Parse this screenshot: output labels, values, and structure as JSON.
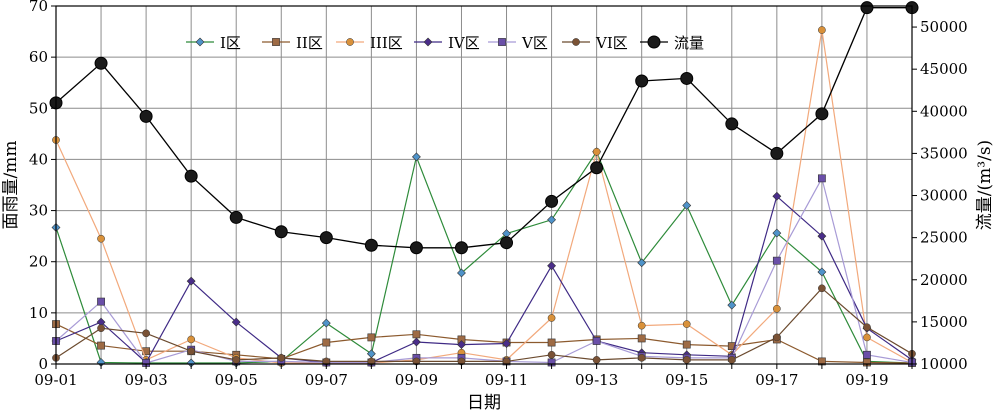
{
  "chart_data": {
    "type": "line",
    "xlabel": "日期",
    "ylabel_left": "面雨量/mm",
    "ylabel_right": "流量/(m³/s)",
    "x": [
      "09-01",
      "09-02",
      "09-03",
      "09-04",
      "09-05",
      "09-06",
      "09-07",
      "09-08",
      "09-09",
      "09-10",
      "09-11",
      "09-12",
      "09-13",
      "09-14",
      "09-15",
      "09-16",
      "09-17",
      "09-18",
      "09-19",
      "09-20"
    ],
    "x_tick_labels": [
      "09-01",
      "09-03",
      "09-05",
      "09-07",
      "09-09",
      "09-11",
      "09-13",
      "09-15",
      "09-17",
      "09-19"
    ],
    "ylim_left": [
      0,
      70
    ],
    "yticks_left": [
      "0",
      "10",
      "20",
      "30",
      "40",
      "50",
      "60",
      "70"
    ],
    "ylim_right": [
      10000,
      52500
    ],
    "yticks_right": [
      "10000",
      "15000",
      "20000",
      "25000",
      "30000",
      "35000",
      "40000",
      "45000",
      "50000"
    ],
    "grid": true,
    "legend_position": "top",
    "series": [
      {
        "name": "I区",
        "axis": "left",
        "color": "#2e8b3a",
        "marker": "diamond",
        "marker_color": "#4f93c9",
        "values": [
          26.7,
          0.3,
          0.2,
          0.2,
          0.2,
          0.5,
          8.0,
          2.0,
          40.5,
          17.8,
          25.5,
          28.2,
          41.5,
          19.8,
          31.0,
          11.5,
          25.6,
          18.0,
          0.5,
          0.2
        ]
      },
      {
        "name": "II区",
        "axis": "left",
        "color": "#8c5a2e",
        "marker": "square",
        "marker_color": "#9e6b45",
        "values": [
          7.8,
          3.6,
          2.5,
          2.5,
          1.8,
          1.0,
          4.2,
          5.2,
          5.8,
          4.8,
          4.2,
          4.2,
          4.8,
          5.0,
          3.8,
          3.5,
          4.8,
          0.5,
          0.3,
          0.2
        ]
      },
      {
        "name": "III区",
        "axis": "left",
        "color": "#f2a97c",
        "marker": "circle",
        "marker_color": "#d9913a",
        "values": [
          43.8,
          24.5,
          0.8,
          4.8,
          1.2,
          0.2,
          0.2,
          0.2,
          0.8,
          2.2,
          0.8,
          9.0,
          41.5,
          7.5,
          7.8,
          1.8,
          10.8,
          65.3,
          5.2,
          0.3
        ]
      },
      {
        "name": "IV区",
        "axis": "left",
        "color": "#3f2a85",
        "marker": "diamond",
        "marker_color": "#4a2d8a",
        "values": [
          4.5,
          8.2,
          0.3,
          16.2,
          8.2,
          1.2,
          0.3,
          0.3,
          4.3,
          3.8,
          4.0,
          19.2,
          4.5,
          2.2,
          1.8,
          1.5,
          32.8,
          25.0,
          7.0,
          0.8
        ]
      },
      {
        "name": "V区",
        "axis": "left",
        "color": "#a89bd6",
        "marker": "square",
        "marker_color": "#6a4fa8",
        "values": [
          4.5,
          12.2,
          0.2,
          2.8,
          0.5,
          0.5,
          0.3,
          0.3,
          1.2,
          1.2,
          0.5,
          0.3,
          4.5,
          1.5,
          1.2,
          1.2,
          20.2,
          36.3,
          1.8,
          0.3
        ]
      },
      {
        "name": "VI区",
        "axis": "left",
        "color": "#6b4a2e",
        "marker": "circle",
        "marker_color": "#7a5235",
        "values": [
          1.2,
          7.0,
          6.0,
          2.5,
          0.8,
          1.2,
          0.5,
          0.5,
          0.5,
          0.5,
          0.5,
          1.8,
          0.8,
          1.2,
          0.8,
          0.8,
          5.2,
          14.8,
          7.2,
          2.0
        ]
      },
      {
        "name": "流量",
        "axis": "right",
        "color": "#000000",
        "marker": "circle-large",
        "marker_color": "#1a1a1a",
        "values": [
          41000,
          45700,
          39400,
          32300,
          27400,
          25700,
          25000,
          24100,
          23800,
          23800,
          24400,
          29300,
          33300,
          43600,
          43900,
          38500,
          35000,
          39700,
          52300,
          52300
        ]
      }
    ]
  }
}
